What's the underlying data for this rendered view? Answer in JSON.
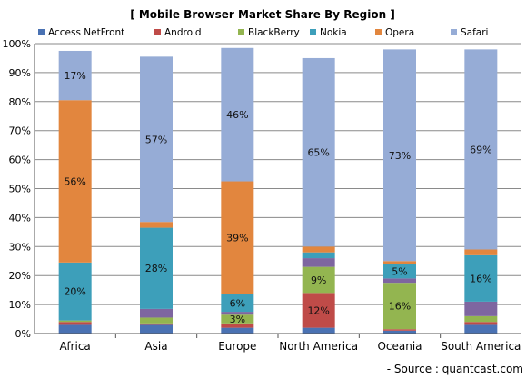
{
  "chart_data": {
    "type": "bar",
    "stacked": true,
    "title": "[ Mobile Browser Market Share By Region ]",
    "source": "- Source : quantcast.com",
    "categories": [
      "Africa",
      "Asia",
      "Europe",
      "North America",
      "Oceania",
      "South America"
    ],
    "ylim": [
      0,
      100
    ],
    "y_ticks": [
      "0%",
      "10%",
      "20%",
      "30%",
      "40%",
      "50%",
      "60%",
      "70%",
      "80%",
      "90%",
      "100%"
    ],
    "grid": true,
    "legend_position": "top",
    "series": [
      {
        "name": "Access NetFront",
        "color": "#4a72b3",
        "values": [
          3,
          3,
          2,
          2,
          1,
          3
        ],
        "labels": [
          "",
          "",
          "",
          "",
          "",
          ""
        ]
      },
      {
        "name": "Android",
        "color": "#bf4b48",
        "values": [
          1,
          0.5,
          1.5,
          12,
          0.5,
          1
        ],
        "labels": [
          "",
          "",
          "",
          "12%",
          "",
          ""
        ]
      },
      {
        "name": "BlackBerry",
        "color": "#93b550",
        "values": [
          0.5,
          2,
          3,
          9,
          16,
          2
        ],
        "labels": [
          "",
          "",
          "3%",
          "9%",
          "16%",
          ""
        ]
      },
      {
        "name": "Nokia",
        "color": "#3d9fba",
        "values": [
          20,
          28,
          6,
          2,
          5,
          16
        ],
        "labels": [
          "20%",
          "28%",
          "6%",
          "",
          "5%",
          "16%"
        ]
      },
      {
        "name": "Opera",
        "color": "#e2863e",
        "values": [
          56,
          2,
          39,
          2,
          1,
          2
        ],
        "labels": [
          "56%",
          "",
          "39%",
          "",
          "",
          ""
        ]
      },
      {
        "name": "Safari",
        "color": "#96acd6",
        "values": [
          17,
          57,
          46,
          65,
          73,
          69
        ],
        "labels": [
          "17%",
          "57%",
          "46%",
          "65%",
          "73%",
          "69%"
        ]
      }
    ],
    "extra_segments": [
      {
        "category": "Asia",
        "after_series": "BlackBerry",
        "value": 3,
        "color": "#7e66a0"
      },
      {
        "category": "Europe",
        "after_series": "BlackBerry",
        "value": 1,
        "color": "#7e66a0"
      },
      {
        "category": "North America",
        "after_series": "BlackBerry",
        "value": 3,
        "color": "#7e66a0"
      },
      {
        "category": "Oceania",
        "after_series": "BlackBerry",
        "value": 1.5,
        "color": "#7e66a0"
      },
      {
        "category": "South America",
        "after_series": "BlackBerry",
        "value": 5,
        "color": "#7e66a0"
      }
    ]
  }
}
